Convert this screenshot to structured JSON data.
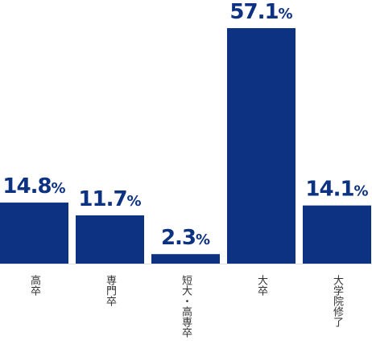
{
  "chart_data": {
    "type": "bar",
    "categories": [
      "高卒",
      "専門卒",
      "短大・高専卒",
      "大卒",
      "大学院修了"
    ],
    "values": [
      14.8,
      11.7,
      2.3,
      57.1,
      14.1
    ],
    "value_labels": [
      "14.8%",
      "11.7%",
      "2.3%",
      "57.1%",
      "14.1%"
    ],
    "color": "#0d3282"
  }
}
